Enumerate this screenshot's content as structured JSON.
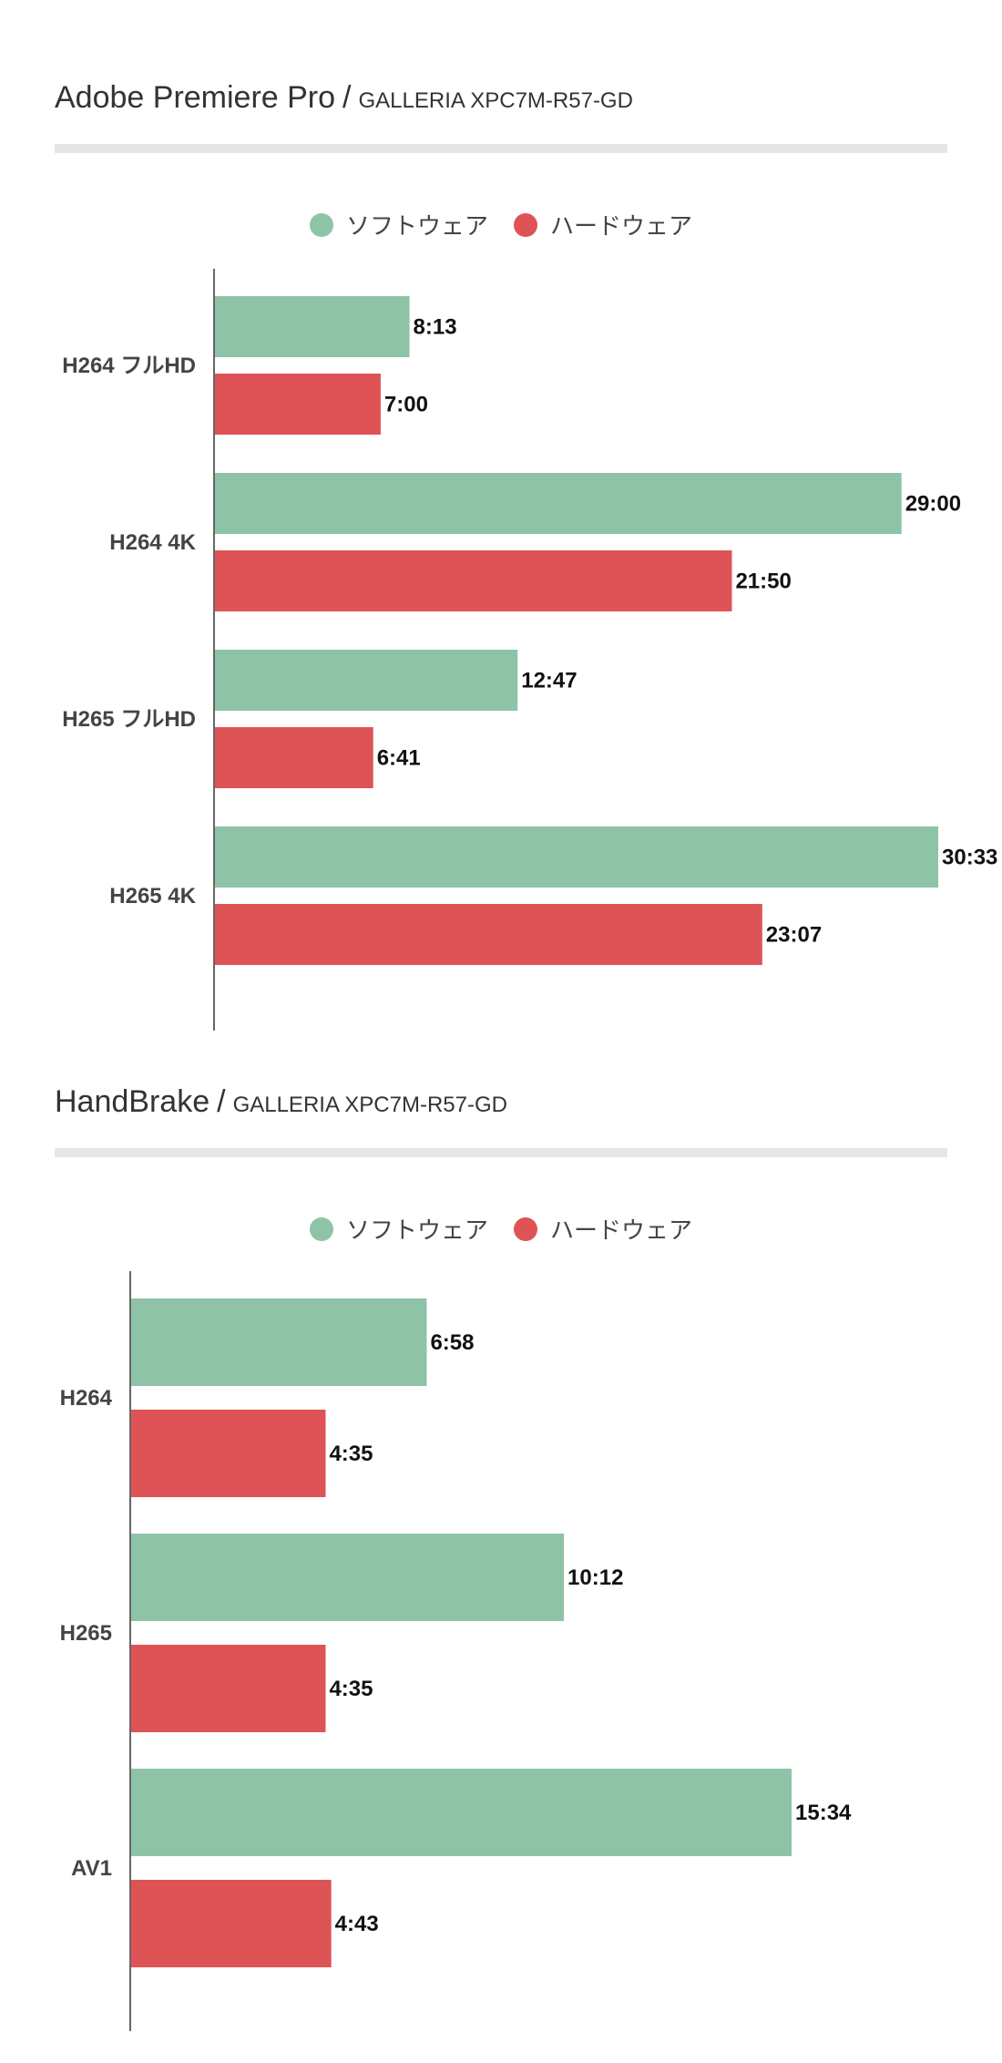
{
  "colors": {
    "software": "#8fc3a7",
    "hardware": "#de5356",
    "axis": "#666666"
  },
  "legend": {
    "software": "ソフトウェア",
    "hardware": "ハードウェア"
  },
  "chart_data": [
    {
      "type": "bar",
      "orientation": "horizontal",
      "title": "Adobe Premiere Pro",
      "subtitle": "GALLERIA XPC7M-R57-GD",
      "categories": [
        "H264 フルHD",
        "H264 4K",
        "H265 フルHD",
        "H265 4K"
      ],
      "series": [
        {
          "name": "ソフトウェア",
          "values": [
            493,
            1740,
            767,
            1833
          ],
          "labels": [
            "8:13",
            "29:00",
            "12:47",
            "30:33"
          ]
        },
        {
          "name": "ハードウェア",
          "values": [
            420,
            1310,
            401,
            1387
          ],
          "labels": [
            "7:00",
            "21:50",
            "6:41",
            "23:07"
          ]
        }
      ],
      "legend_position": "top-center",
      "grid": false
    },
    {
      "type": "bar",
      "orientation": "horizontal",
      "title": "HandBrake",
      "subtitle": "GALLERIA XPC7M-R57-GD",
      "categories": [
        "H264",
        "H265",
        "AV1"
      ],
      "series": [
        {
          "name": "ソフトウェア",
          "values": [
            418,
            612,
            934
          ],
          "labels": [
            "6:58",
            "10:12",
            "15:34"
          ]
        },
        {
          "name": "ハードウェア",
          "values": [
            275,
            275,
            283
          ],
          "labels": [
            "4:35",
            "4:35",
            "4:43"
          ]
        }
      ],
      "legend_position": "top-center",
      "grid": false
    }
  ]
}
